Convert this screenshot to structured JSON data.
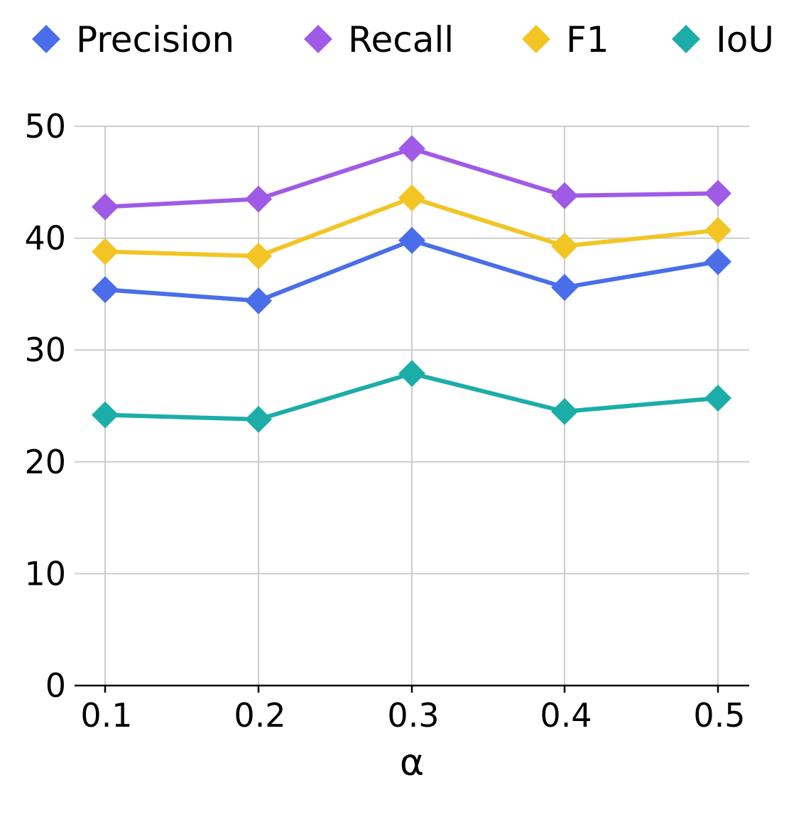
{
  "chart_data": {
    "type": "line",
    "title": "",
    "xlabel": "α",
    "ylabel": "",
    "categories": [
      "0.1",
      "0.2",
      "0.3",
      "0.4",
      "0.5"
    ],
    "x": [
      0.1,
      0.2,
      0.3,
      0.4,
      0.5
    ],
    "ylim": [
      0,
      50
    ],
    "yticks": [
      0,
      10,
      20,
      30,
      40,
      50
    ],
    "ytick_labels": [
      "0",
      "10",
      "20",
      "30",
      "40",
      "50"
    ],
    "grid": true,
    "legend_position": "top",
    "marker": "diamond",
    "series": [
      {
        "name": "Precision",
        "color": "#4a6ee9",
        "values": [
          35.4,
          34.4,
          39.8,
          35.6,
          37.9
        ]
      },
      {
        "name": "Recall",
        "color": "#9f5ae6",
        "values": [
          42.8,
          43.5,
          48.0,
          43.8,
          44.0
        ]
      },
      {
        "name": "F1",
        "color": "#f2c525",
        "values": [
          38.8,
          38.4,
          43.6,
          39.3,
          40.7
        ]
      },
      {
        "name": "IoU",
        "color": "#1cada8",
        "values": [
          24.2,
          23.8,
          27.9,
          24.5,
          25.7
        ]
      }
    ]
  }
}
